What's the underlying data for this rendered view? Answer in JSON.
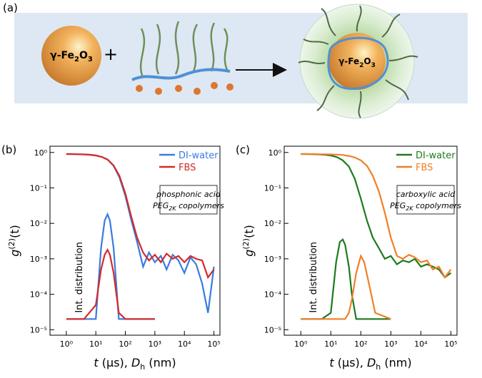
{
  "schematic": {
    "panel_label": "(a)",
    "particle_label": [
      "γ-Fe",
      "2",
      "O",
      "3"
    ],
    "plus": "+",
    "coated_label": [
      "γ-Fe",
      "2",
      "O",
      "3"
    ]
  },
  "chart_data": [
    {
      "type": "line",
      "panel_label": "(b)",
      "log_x": true,
      "log_y": true,
      "legend": "upper right",
      "x_label": [
        "t",
        " (μs), ",
        "D",
        "h",
        " (nm)"
      ],
      "y_label": [
        "g",
        "(2)",
        "(t)"
      ],
      "annotation": [
        "phosphonic acid",
        "PEG",
        "2K",
        " copolymers"
      ],
      "xlim": [
        0.28,
        160000
      ],
      "ylim": [
        7e-06,
        1.5
      ],
      "xticks": [
        {
          "value": 1,
          "label": "10⁰"
        },
        {
          "value": 10,
          "label": "10¹"
        },
        {
          "value": 100,
          "label": "10²"
        },
        {
          "value": 1000,
          "label": "10³"
        },
        {
          "value": 10000,
          "label": "10⁴"
        },
        {
          "value": 100000,
          "label": "10⁵"
        }
      ],
      "yticks": [
        {
          "value": 1,
          "label": "10⁰"
        },
        {
          "value": 0.1,
          "label": "10⁻¹"
        },
        {
          "value": 0.01,
          "label": "10⁻²"
        },
        {
          "value": 0.001,
          "label": "10⁻³"
        },
        {
          "value": 0.0001,
          "label": "10⁻⁴"
        },
        {
          "value": 1e-05,
          "label": "10⁻⁵"
        }
      ],
      "x": [
        1,
        1.6,
        2.5,
        4,
        6.3,
        10,
        16,
        25,
        40,
        63,
        100,
        160,
        250,
        400,
        630,
        1000,
        1600,
        2500,
        4000,
        6300,
        10000,
        16000,
        25000,
        40000,
        63000,
        100000
      ],
      "series": [
        {
          "name": "DI-water",
          "color": "#3a7be0",
          "values": [
            0.9,
            0.9,
            0.89,
            0.88,
            0.86,
            0.82,
            0.75,
            0.63,
            0.42,
            0.2,
            0.06,
            0.012,
            0.003,
            0.0006,
            0.0015,
            0.0008,
            0.0012,
            0.0005,
            0.0013,
            0.0009,
            0.0004,
            0.0011,
            0.0007,
            0.0002,
            3e-05,
            0.0006
          ]
        },
        {
          "name": "FBS",
          "color": "#d42a2a",
          "values": [
            0.9,
            0.9,
            0.89,
            0.88,
            0.86,
            0.82,
            0.75,
            0.63,
            0.43,
            0.22,
            0.07,
            0.015,
            0.004,
            0.0015,
            0.0009,
            0.0013,
            0.0008,
            0.0014,
            0.001,
            0.0012,
            0.0008,
            0.0012,
            0.001,
            0.0009,
            0.0003,
            0.0005
          ]
        }
      ],
      "distribution": {
        "label": "Int. distribution",
        "x": [
          1,
          4,
          10,
          15,
          20,
          25,
          30,
          40,
          60,
          100,
          1000
        ],
        "series": [
          {
            "color": "#3a7be0",
            "values": [
              2e-05,
              2e-05,
              2e-05,
              0.002,
              0.012,
              0.018,
              0.012,
              0.002,
              2e-05,
              2e-05,
              2e-05
            ]
          },
          {
            "color": "#d42a2a",
            "values": [
              2e-05,
              2e-05,
              5e-05,
              0.0005,
              0.0013,
              0.0018,
              0.0013,
              0.0004,
              3e-05,
              2e-05,
              2e-05
            ]
          }
        ]
      }
    },
    {
      "type": "line",
      "panel_label": "(c)",
      "log_x": true,
      "log_y": true,
      "legend": "upper right",
      "x_label": [
        "t",
        " (μs), ",
        "D",
        "h",
        " (nm)"
      ],
      "y_label": [
        "g",
        "(2)",
        "(t)"
      ],
      "annotation": [
        "carboxylic acid",
        "PEG",
        "2K",
        " copolymers"
      ],
      "xlim": [
        0.28,
        160000
      ],
      "ylim": [
        7e-06,
        1.5
      ],
      "xticks": [
        {
          "value": 1,
          "label": "10⁰"
        },
        {
          "value": 10,
          "label": "10¹"
        },
        {
          "value": 100,
          "label": "10²"
        },
        {
          "value": 1000,
          "label": "10³"
        },
        {
          "value": 10000,
          "label": "10⁴"
        },
        {
          "value": 100000,
          "label": "10⁵"
        }
      ],
      "yticks": [
        {
          "value": 1,
          "label": "10⁰"
        },
        {
          "value": 0.1,
          "label": "10⁻¹"
        },
        {
          "value": 0.01,
          "label": "10⁻²"
        },
        {
          "value": 0.001,
          "label": "10⁻³"
        },
        {
          "value": 0.0001,
          "label": "10⁻⁴"
        },
        {
          "value": 1e-05,
          "label": "10⁻⁵"
        }
      ],
      "x": [
        1,
        1.6,
        2.5,
        4,
        6.3,
        10,
        16,
        25,
        40,
        63,
        100,
        160,
        250,
        400,
        630,
        1000,
        1600,
        2500,
        4000,
        6300,
        10000,
        16000,
        25000,
        40000,
        63000,
        100000
      ],
      "series": [
        {
          "name": "DI-water",
          "color": "#1e7a1e",
          "values": [
            0.9,
            0.9,
            0.89,
            0.88,
            0.86,
            0.82,
            0.74,
            0.6,
            0.4,
            0.18,
            0.05,
            0.012,
            0.004,
            0.002,
            0.001,
            0.0012,
            0.0007,
            0.0009,
            0.0008,
            0.001,
            0.0006,
            0.0007,
            0.0006,
            0.0005,
            0.0003,
            0.0004
          ]
        },
        {
          "name": "FBS",
          "color": "#f07f28",
          "values": [
            0.9,
            0.9,
            0.9,
            0.89,
            0.89,
            0.88,
            0.87,
            0.85,
            0.8,
            0.72,
            0.6,
            0.42,
            0.22,
            0.08,
            0.02,
            0.004,
            0.0012,
            0.001,
            0.0013,
            0.0011,
            0.0008,
            0.0009,
            0.0005,
            0.0006,
            0.0003,
            0.0005
          ]
        }
      ],
      "distribution": {
        "label": "Int. distribution",
        "x": [
          1,
          5,
          10,
          15,
          20,
          25,
          30,
          40,
          50,
          70,
          100,
          130,
          200,
          300,
          1000
        ],
        "series": [
          {
            "color": "#1e7a1e",
            "values": [
              2e-05,
              2e-05,
              3e-05,
              0.0008,
              0.003,
              0.0035,
              0.0025,
              0.0006,
              0.0001,
              2e-05,
              2e-05,
              2e-05,
              2e-05,
              2e-05,
              2e-05
            ]
          },
          {
            "color": "#f07f28",
            "values": [
              2e-05,
              2e-05,
              2e-05,
              2e-05,
              2e-05,
              2e-05,
              2e-05,
              3e-05,
              7e-05,
              0.0004,
              0.0012,
              0.0008,
              0.00015,
              3e-05,
              2e-05
            ]
          }
        ]
      }
    }
  ]
}
